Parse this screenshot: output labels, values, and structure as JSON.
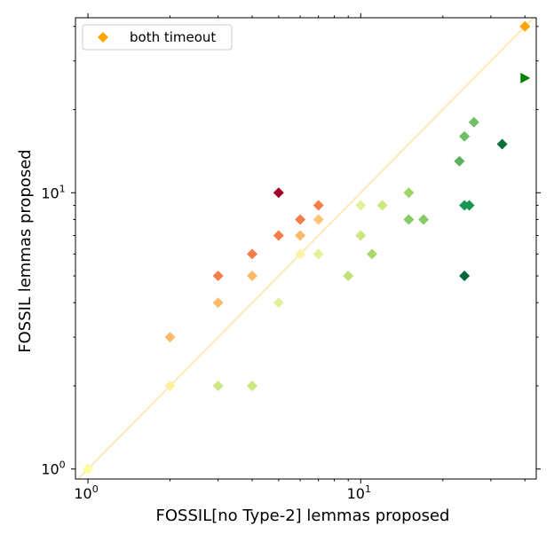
{
  "chart_data": {
    "type": "scatter",
    "xlabel": "FOSSIL[no Type-2] lemmas proposed",
    "ylabel": "FOSSIL lemmas proposed",
    "xscale": "log",
    "yscale": "log",
    "xlim": [
      0.9,
      44
    ],
    "ylim": [
      0.92,
      43
    ],
    "x_ticks": [
      {
        "value": 1,
        "label": "10^0"
      },
      {
        "value": 10,
        "label": "10^1"
      }
    ],
    "y_ticks": [
      {
        "value": 1,
        "label": "10^0"
      },
      {
        "value": 10,
        "label": "10^1"
      }
    ],
    "grid": false,
    "diagonal": {
      "from": 0.9,
      "to": 44,
      "color": "#fde9b8"
    },
    "legend": {
      "position": "top-left",
      "entries": [
        {
          "label": "both timeout",
          "marker": "diamond",
          "color": "#ffa500"
        }
      ]
    },
    "points": [
      {
        "x": 1,
        "y": 1,
        "color": "#ffff99",
        "marker": "diamond"
      },
      {
        "x": 2,
        "y": 2,
        "color": "#ffef9a",
        "marker": "diamond"
      },
      {
        "x": 2,
        "y": 3,
        "color": "#fdb96a",
        "marker": "diamond"
      },
      {
        "x": 3,
        "y": 2,
        "color": "#cbe77e",
        "marker": "diamond"
      },
      {
        "x": 3,
        "y": 4,
        "color": "#fdba6b",
        "marker": "diamond"
      },
      {
        "x": 3,
        "y": 5,
        "color": "#f57d4a",
        "marker": "diamond"
      },
      {
        "x": 4,
        "y": 2,
        "color": "#cbe77e",
        "marker": "diamond"
      },
      {
        "x": 4,
        "y": 5,
        "color": "#fdb96a",
        "marker": "diamond"
      },
      {
        "x": 4,
        "y": 6,
        "color": "#f57d4a",
        "marker": "diamond"
      },
      {
        "x": 5,
        "y": 4,
        "color": "#e3f29a",
        "marker": "diamond"
      },
      {
        "x": 5,
        "y": 7,
        "color": "#f57d4a",
        "marker": "diamond"
      },
      {
        "x": 5,
        "y": 10,
        "color": "#a50026",
        "marker": "diamond"
      },
      {
        "x": 6,
        "y": 6,
        "color": "#fef2a2",
        "marker": "diamond"
      },
      {
        "x": 6,
        "y": 7,
        "color": "#fdb96a",
        "marker": "diamond"
      },
      {
        "x": 6,
        "y": 8,
        "color": "#f57d4a",
        "marker": "diamond"
      },
      {
        "x": 7,
        "y": 6,
        "color": "#e3f29a",
        "marker": "diamond"
      },
      {
        "x": 7,
        "y": 8,
        "color": "#fdc478",
        "marker": "diamond"
      },
      {
        "x": 7,
        "y": 9,
        "color": "#f57d4a",
        "marker": "diamond"
      },
      {
        "x": 9,
        "y": 5,
        "color": "#bde27a",
        "marker": "diamond"
      },
      {
        "x": 10,
        "y": 7,
        "color": "#cbe77e",
        "marker": "diamond"
      },
      {
        "x": 10,
        "y": 9,
        "color": "#e3f29a",
        "marker": "diamond"
      },
      {
        "x": 11,
        "y": 6,
        "color": "#a7d96a",
        "marker": "diamond"
      },
      {
        "x": 12,
        "y": 9,
        "color": "#cbe77e",
        "marker": "diamond"
      },
      {
        "x": 15,
        "y": 8,
        "color": "#86cb66",
        "marker": "diamond"
      },
      {
        "x": 15,
        "y": 10,
        "color": "#9dd569",
        "marker": "diamond"
      },
      {
        "x": 17,
        "y": 8,
        "color": "#86cb66",
        "marker": "diamond"
      },
      {
        "x": 23,
        "y": 13,
        "color": "#5cb25f",
        "marker": "diamond"
      },
      {
        "x": 24,
        "y": 5,
        "color": "#006837",
        "marker": "diamond"
      },
      {
        "x": 24,
        "y": 9,
        "color": "#17964f",
        "marker": "diamond"
      },
      {
        "x": 24,
        "y": 16,
        "color": "#6fbf64",
        "marker": "diamond"
      },
      {
        "x": 25,
        "y": 9,
        "color": "#17964f",
        "marker": "diamond"
      },
      {
        "x": 26,
        "y": 18,
        "color": "#6fbf64",
        "marker": "diamond"
      },
      {
        "x": 33,
        "y": 15,
        "color": "#0a6e3a",
        "marker": "diamond"
      },
      {
        "x": 40,
        "y": 40,
        "color": "#ffa500",
        "marker": "diamond"
      },
      {
        "x": 40,
        "y": 26,
        "color": "#008000",
        "marker": "triangle-right"
      }
    ]
  }
}
